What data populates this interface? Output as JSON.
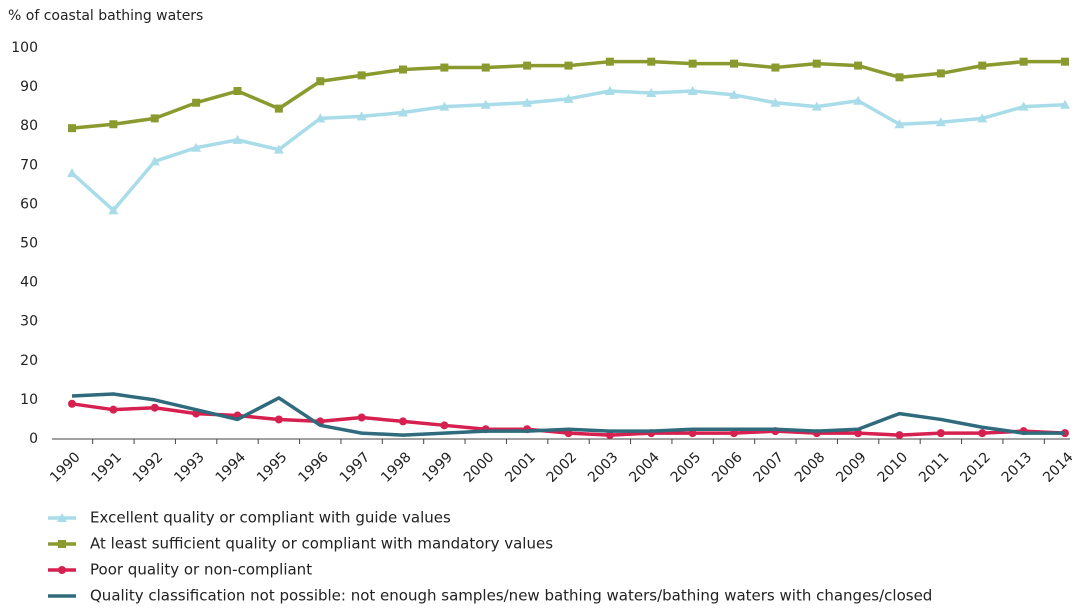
{
  "chart_data": {
    "type": "line",
    "y_axis_label": "% of coastal bathing waters",
    "categories": [
      "1990",
      "1991",
      "1992",
      "1993",
      "1994",
      "1995",
      "1996",
      "1997",
      "1998",
      "1999",
      "2000",
      "2001",
      "2002",
      "2003",
      "2004",
      "2005",
      "2006",
      "2007",
      "2008",
      "2009",
      "2010",
      "2011",
      "2012",
      "2013",
      "2014"
    ],
    "ylim": [
      0,
      100
    ],
    "yticks": [
      0,
      10,
      20,
      30,
      40,
      50,
      60,
      70,
      80,
      90,
      100
    ],
    "grid": false,
    "legend": "bottom",
    "series": [
      {
        "name": "Excellent quality or compliant with guide values",
        "color": "#a8dce8",
        "marker": "triangle",
        "values": [
          68,
          58.5,
          71,
          74.5,
          76.5,
          74,
          82,
          82.5,
          83.5,
          85,
          85.5,
          86,
          87,
          89,
          88.5,
          89,
          88,
          86,
          85,
          86.5,
          80.5,
          81,
          82,
          85,
          85.5
        ]
      },
      {
        "name": "At least sufficient quality or compliant with mandatory values",
        "color": "#8a9a2e",
        "marker": "square",
        "values": [
          79.5,
          80.5,
          82,
          86,
          89,
          84.5,
          91.5,
          93,
          94.5,
          95,
          95,
          95.5,
          95.5,
          96.5,
          96.5,
          96,
          96,
          95,
          96,
          95.5,
          92.5,
          93.5,
          95.5,
          96.5,
          96.5
        ]
      },
      {
        "name": "Poor quality or non-compliant",
        "color": "#d6204f",
        "marker": "circle",
        "values": [
          9,
          7.5,
          8,
          6.5,
          6,
          5,
          4.5,
          5.5,
          4.5,
          3.5,
          2.5,
          2.5,
          1.5,
          1,
          1.5,
          1.5,
          1.5,
          2,
          1.5,
          1.5,
          1,
          1.5,
          1.5,
          2,
          1.5
        ]
      },
      {
        "name": "Quality classification not possible: not enough samples/new bathing waters/bathing waters with changes/closed",
        "color": "#2f6b7c",
        "marker": "none",
        "values": [
          11,
          11.5,
          10,
          7.5,
          5,
          10.5,
          3.5,
          1.5,
          1,
          1.5,
          2,
          2,
          2.5,
          2,
          2,
          2.5,
          2.5,
          2.5,
          2,
          2.5,
          6.5,
          5,
          3,
          1.5,
          1.5
        ]
      }
    ]
  }
}
